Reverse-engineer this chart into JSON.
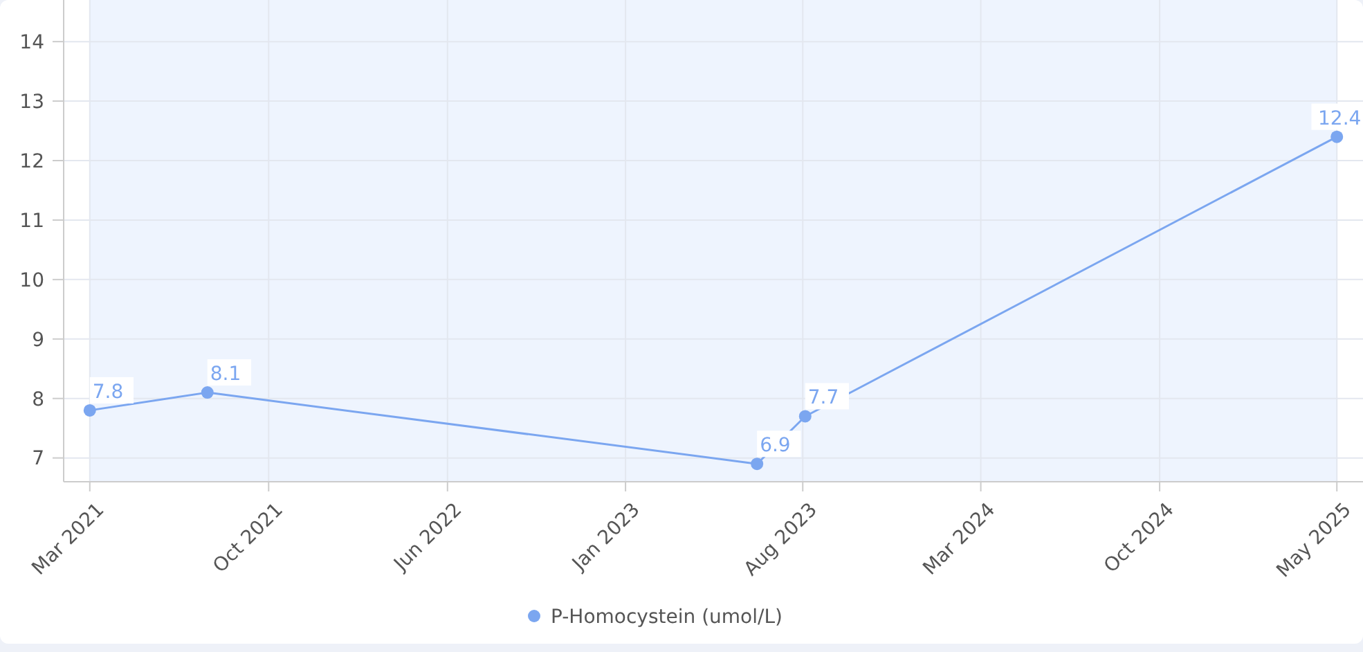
{
  "chart_data": {
    "type": "line",
    "x": [
      "2021-03-20",
      "2021-08-11",
      "2023-06-15",
      "2023-08-13",
      "2025-05-25"
    ],
    "series": [
      {
        "name": "P-Homocystein (umol/L)",
        "color": "#7ba6f0",
        "values": [
          7.8,
          8.1,
          6.9,
          7.7,
          12.4
        ]
      }
    ],
    "xlim": [
      "2021-02-16",
      "2025-06-26"
    ],
    "xticks": [
      {
        "value": "2021-03-20",
        "label": "Mar 2021"
      },
      {
        "value": "2021-10-25",
        "label": "Oct 2021"
      },
      {
        "value": "2022-06-01",
        "label": "Jun 2022"
      },
      {
        "value": "2023-01-05",
        "label": "Jan 2023"
      },
      {
        "value": "2023-08-10",
        "label": "Aug 2023"
      },
      {
        "value": "2024-03-15",
        "label": "Mar 2024"
      },
      {
        "value": "2024-10-20",
        "label": "Oct 2024"
      },
      {
        "value": "2025-05-25",
        "label": "May 2025"
      }
    ],
    "ylim": [
      6.6,
      14.7
    ],
    "yticks": [
      7,
      8,
      9,
      10,
      11,
      12,
      13,
      14
    ],
    "bands": [
      {
        "axis": "x",
        "from": "2021-03-20",
        "to": "2025-05-25",
        "color": "#eef4fe"
      }
    ],
    "grid": true,
    "legend": "bottom",
    "marker": "circle",
    "line_style": "solid",
    "data_labels": true
  }
}
